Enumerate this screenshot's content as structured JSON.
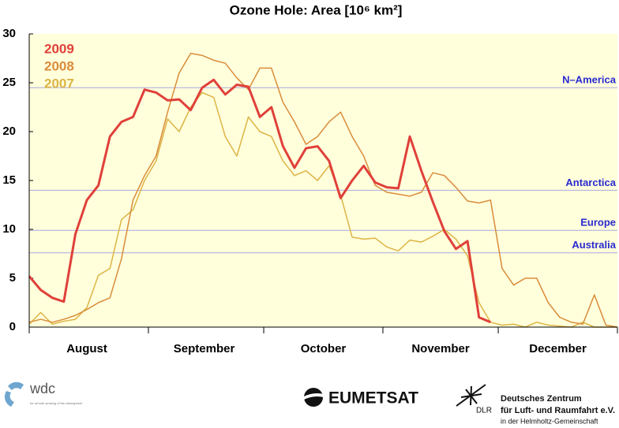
{
  "chart_data": {
    "type": "line",
    "title": "Ozone Hole: Area [10⁶ km²]",
    "x": [
      0,
      3,
      6,
      9,
      12,
      15,
      18,
      21,
      24,
      27,
      30,
      33,
      36,
      39,
      42,
      45,
      48,
      51,
      54,
      57,
      60,
      63,
      66,
      69,
      72,
      75,
      78,
      81,
      84,
      87,
      90,
      93,
      96,
      99,
      102,
      105,
      108,
      111,
      114,
      117,
      120,
      123,
      126,
      129,
      132,
      135,
      138,
      141,
      144,
      147,
      150,
      153
    ],
    "series": [
      {
        "name": "2009",
        "color": "#e0403a",
        "width": 3,
        "values": [
          5.2,
          3.8,
          3,
          2.6,
          9.5,
          13,
          14.5,
          19.5,
          21,
          21.5,
          24.3,
          24,
          23.2,
          23.3,
          22.2,
          24.5,
          25.3,
          23.8,
          24.8,
          24.6,
          21.5,
          22.5,
          18.5,
          16.3,
          18.3,
          18.5,
          17,
          13.2,
          15,
          16.5,
          14.8,
          14.3,
          14.2,
          19.5,
          16,
          12.8,
          9.8,
          8,
          8.8,
          1,
          0.5,
          null,
          null,
          null,
          null,
          null,
          null,
          null,
          null,
          null,
          null,
          null
        ]
      },
      {
        "name": "2008",
        "color": "#d98c3a",
        "width": 1.5,
        "values": [
          0.5,
          0.8,
          0.5,
          0.8,
          1.2,
          1.8,
          2.5,
          3,
          7,
          13,
          15.5,
          17.5,
          22,
          26,
          28,
          27.8,
          27.3,
          27,
          25.5,
          24.3,
          26.5,
          26.5,
          23,
          21,
          18.7,
          19.5,
          21,
          22,
          19.5,
          17.5,
          14.5,
          13.8,
          13.6,
          13.4,
          13.8,
          15.8,
          15.5,
          14.3,
          12.9,
          12.7,
          13,
          6,
          4.3,
          5,
          5,
          2.5,
          1,
          0.5,
          0.3,
          3.3,
          0.2,
          0
        ]
      },
      {
        "name": "2007",
        "color": "#dcb445",
        "width": 1.5,
        "values": [
          0.3,
          1.5,
          0.3,
          0.6,
          0.8,
          2,
          5.3,
          6,
          11,
          12,
          15,
          17,
          21.3,
          20,
          22.5,
          24,
          23.5,
          19.5,
          17.5,
          21.5,
          20,
          19.5,
          17,
          15.5,
          16,
          15,
          16.5,
          13.5,
          9.2,
          9,
          9.1,
          8.2,
          7.8,
          8.9,
          8.7,
          9.3,
          10,
          9,
          7.3,
          2.5,
          0.5,
          0.2,
          0.3,
          0,
          0.5,
          0.2,
          0.1,
          0,
          0.5,
          0,
          0,
          0
        ]
      }
    ],
    "xlim": [
      0,
      153
    ],
    "xticks": [
      {
        "value": 15,
        "label": "August"
      },
      {
        "value": 45.5,
        "label": "September"
      },
      {
        "value": 76.5,
        "label": "October"
      },
      {
        "value": 107,
        "label": "November"
      },
      {
        "value": 137.5,
        "label": "December"
      }
    ],
    "month_bounds": [
      0,
      31,
      61,
      92,
      122,
      153
    ],
    "ylim": [
      0,
      30
    ],
    "yticks": [
      0,
      5,
      10,
      15,
      20,
      25,
      30
    ],
    "reference_lines": [
      {
        "label": "N–America",
        "value": 24.5
      },
      {
        "label": "Antarctica",
        "value": 14
      },
      {
        "label": "Europe",
        "value": 9.9
      },
      {
        "label": "Australia",
        "value": 7.6
      }
    ],
    "legend": "upper left",
    "background": "#ffffdc"
  },
  "logos": {
    "wdc": "wdc",
    "wdc_sub": "for remote sensing of the atmosphere",
    "eumetsat": "EUMETSAT",
    "dlr": "DLR",
    "dlr_lines": [
      "Deutsches Zentrum",
      "für Luft- und Raumfahrt e.V.",
      "in der Helmholtz-Gemeinschaft"
    ]
  }
}
